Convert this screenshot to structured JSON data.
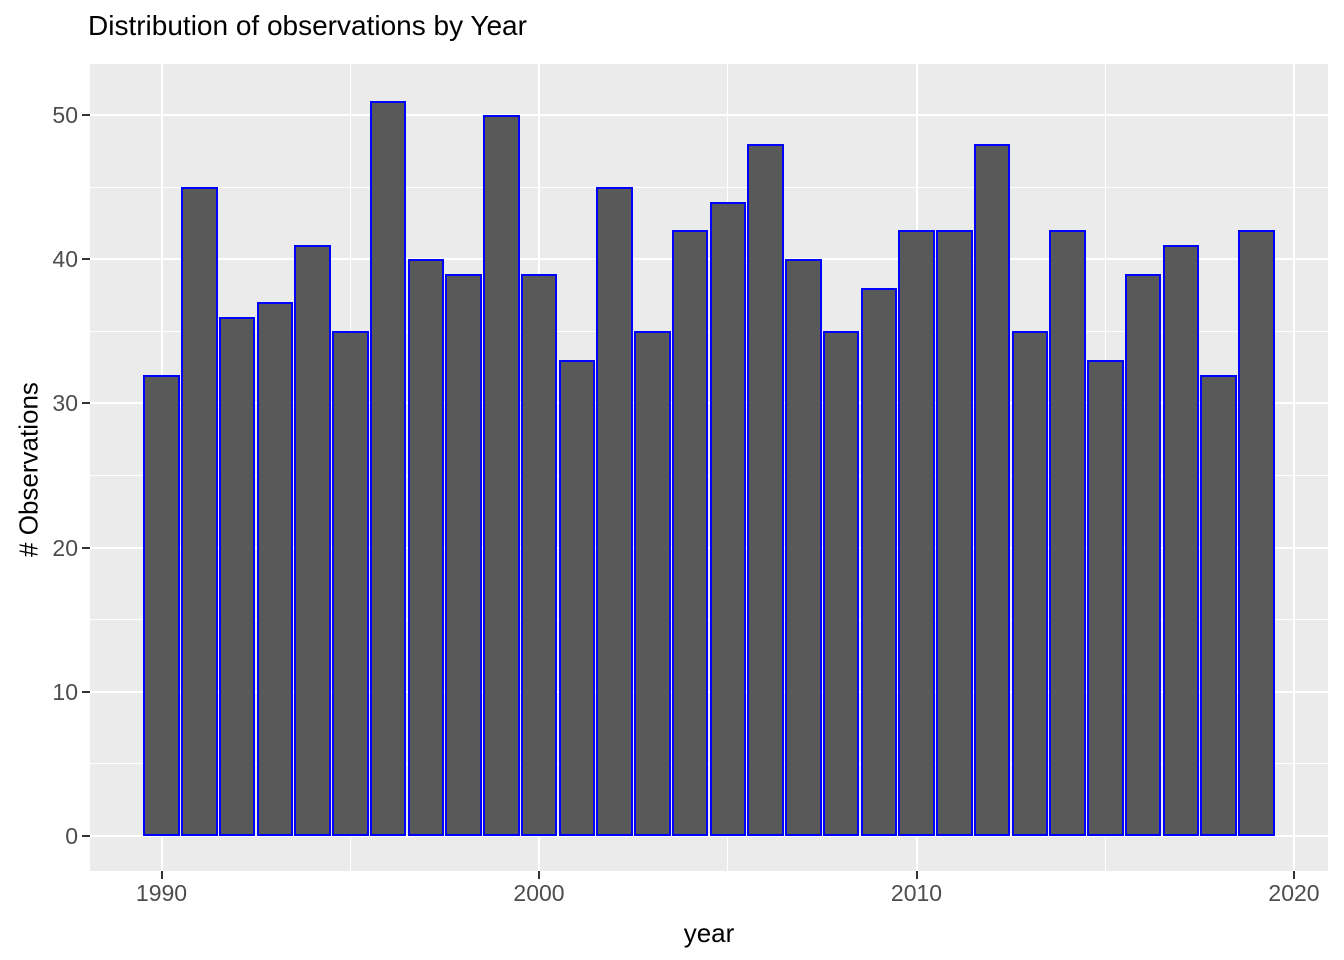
{
  "chart_data": {
    "type": "bar",
    "title": "Distribution of observations by Year",
    "xlabel": "year",
    "ylabel": "# Observations",
    "categories": [
      1990,
      1991,
      1992,
      1993,
      1994,
      1995,
      1996,
      1997,
      1998,
      1999,
      2000,
      2001,
      2002,
      2003,
      2004,
      2005,
      2006,
      2007,
      2008,
      2009,
      2010,
      2011,
      2012,
      2013,
      2014,
      2015,
      2016,
      2017,
      2018,
      2019
    ],
    "values": [
      32,
      45,
      36,
      37,
      41,
      35,
      51,
      40,
      39,
      50,
      39,
      33,
      45,
      35,
      42,
      44,
      48,
      40,
      35,
      38,
      42,
      42,
      48,
      35,
      42,
      33,
      39,
      41,
      32,
      42
    ],
    "x_ticks": [
      1990,
      2000,
      2010,
      2020
    ],
    "x_minor_ticks": [
      1995,
      2005,
      2015
    ],
    "y_ticks": [
      0,
      10,
      20,
      30,
      40,
      50
    ],
    "y_minor_ticks": [
      5,
      15,
      25,
      35,
      45
    ],
    "xlim": [
      1988.1,
      2020.9
    ],
    "ylim": [
      -2.5,
      53.5
    ],
    "grid": true,
    "legend": false,
    "colors": {
      "bar_fill": "#595959",
      "bar_border": "#0000FF",
      "panel_background": "#EBEBEB",
      "gridline": "#FFFFFF",
      "tick_label": "#4D4D4D",
      "tick_mark": "#333333",
      "title": "#000000",
      "axis_title": "#000000",
      "background": "#FFFFFF"
    }
  }
}
